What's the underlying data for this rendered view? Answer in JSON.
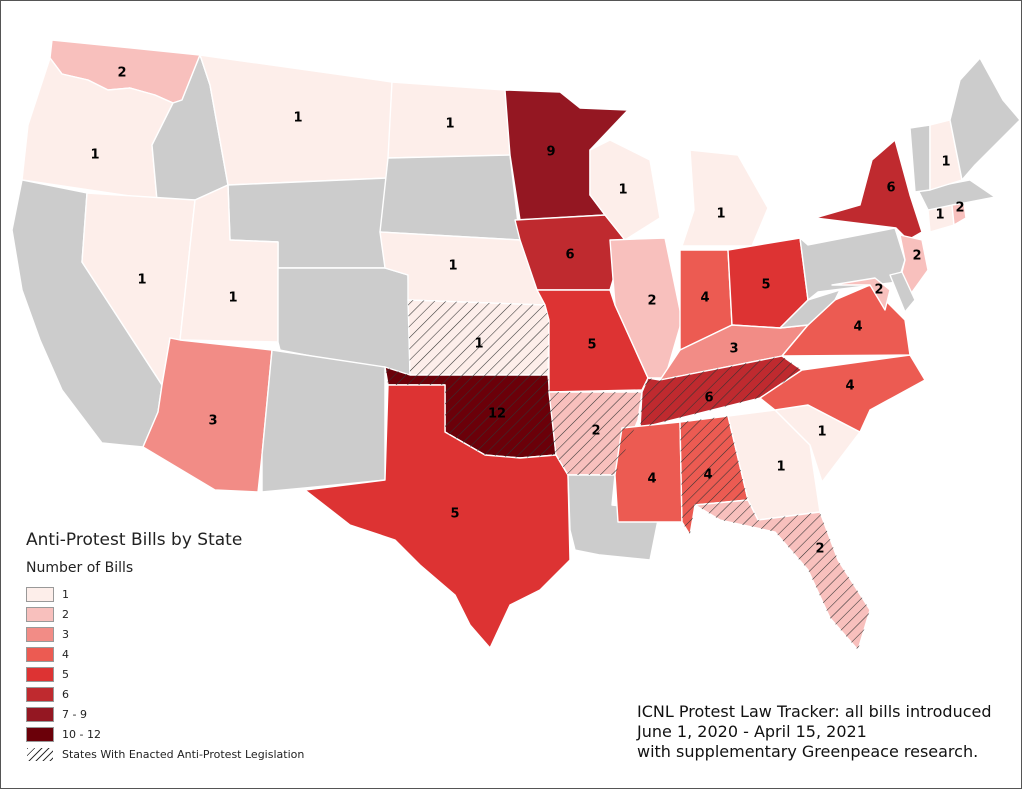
{
  "legend": {
    "title": "Anti-Protest Bills by State",
    "subtitle": "Number of Bills",
    "classes": [
      {
        "label": "1",
        "color": "#fdeeea"
      },
      {
        "label": "2",
        "color": "#f8c0bd"
      },
      {
        "label": "3",
        "color": "#f28c86"
      },
      {
        "label": "4",
        "color": "#ec5b52"
      },
      {
        "label": "5",
        "color": "#dd3333"
      },
      {
        "label": "6",
        "color": "#bf2a2f"
      },
      {
        "label": "7 - 9",
        "color": "#941722"
      },
      {
        "label": "10 - 12",
        "color": "#6b0009"
      }
    ],
    "hatch_label": "States With Enacted Anti-Protest Legislation"
  },
  "no_data_color": "#cccccc",
  "source": {
    "line1": "ICNL Protest Law Tracker: all bills introduced",
    "line2": "June 1, 2020 - April 15, 2021",
    "line3": "with supplementary Greenpeace research."
  },
  "states": [
    {
      "id": "WA",
      "count": 2,
      "enacted": false
    },
    {
      "id": "OR",
      "count": 1,
      "enacted": false
    },
    {
      "id": "CA",
      "count": 0,
      "enacted": false
    },
    {
      "id": "ID",
      "count": 0,
      "enacted": false
    },
    {
      "id": "NV",
      "count": 1,
      "enacted": false
    },
    {
      "id": "MT",
      "count": 1,
      "enacted": false
    },
    {
      "id": "WY",
      "count": 0,
      "enacted": false
    },
    {
      "id": "UT",
      "count": 1,
      "enacted": false
    },
    {
      "id": "AZ",
      "count": 3,
      "enacted": false
    },
    {
      "id": "CO",
      "count": 0,
      "enacted": false
    },
    {
      "id": "NM",
      "count": 0,
      "enacted": false
    },
    {
      "id": "ND",
      "count": 1,
      "enacted": false
    },
    {
      "id": "SD",
      "count": 0,
      "enacted": false
    },
    {
      "id": "NE",
      "count": 1,
      "enacted": false
    },
    {
      "id": "KS",
      "count": 1,
      "enacted": true
    },
    {
      "id": "OK",
      "count": 12,
      "enacted": true
    },
    {
      "id": "TX",
      "count": 5,
      "enacted": false
    },
    {
      "id": "MN",
      "count": 9,
      "enacted": false
    },
    {
      "id": "IA",
      "count": 6,
      "enacted": false
    },
    {
      "id": "MO",
      "count": 5,
      "enacted": false
    },
    {
      "id": "AR",
      "count": 2,
      "enacted": true
    },
    {
      "id": "LA",
      "count": 0,
      "enacted": false
    },
    {
      "id": "WI",
      "count": 1,
      "enacted": false
    },
    {
      "id": "IL",
      "count": 2,
      "enacted": false
    },
    {
      "id": "MI",
      "count": 1,
      "enacted": false
    },
    {
      "id": "IN",
      "count": 4,
      "enacted": false
    },
    {
      "id": "OH",
      "count": 5,
      "enacted": false
    },
    {
      "id": "KY",
      "count": 3,
      "enacted": false
    },
    {
      "id": "TN",
      "count": 6,
      "enacted": true
    },
    {
      "id": "MS",
      "count": 4,
      "enacted": false
    },
    {
      "id": "AL",
      "count": 4,
      "enacted": true
    },
    {
      "id": "GA",
      "count": 1,
      "enacted": false
    },
    {
      "id": "FL",
      "count": 2,
      "enacted": true
    },
    {
      "id": "SC",
      "count": 1,
      "enacted": false
    },
    {
      "id": "NC",
      "count": 4,
      "enacted": false
    },
    {
      "id": "VA",
      "count": 4,
      "enacted": false
    },
    {
      "id": "WV",
      "count": 0,
      "enacted": false
    },
    {
      "id": "PA",
      "count": 0,
      "enacted": false
    },
    {
      "id": "NY",
      "count": 6,
      "enacted": false
    },
    {
      "id": "NJ",
      "count": 2,
      "enacted": false
    },
    {
      "id": "MD",
      "count": 2,
      "enacted": false
    },
    {
      "id": "DE",
      "count": 0,
      "enacted": false
    },
    {
      "id": "CT",
      "count": 1,
      "enacted": false
    },
    {
      "id": "RI",
      "count": 2,
      "enacted": false
    },
    {
      "id": "MA",
      "count": 0,
      "enacted": false
    },
    {
      "id": "VT",
      "count": 0,
      "enacted": false
    },
    {
      "id": "NH",
      "count": 1,
      "enacted": false
    },
    {
      "id": "ME",
      "count": 0,
      "enacted": false
    }
  ]
}
